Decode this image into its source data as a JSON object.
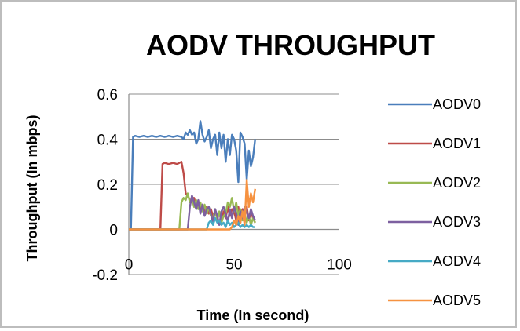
{
  "chart_data": {
    "type": "line",
    "title": "AODV THROUGHPUT",
    "xlabel": "Time (In second)",
    "ylabel": "Throughput (In mbps)",
    "xlim": [
      0,
      100
    ],
    "ylim": [
      -0.2,
      0.6
    ],
    "x_ticks": [
      0,
      50,
      100
    ],
    "y_ticks": [
      -0.2,
      0,
      0.2,
      0.4,
      0.6
    ],
    "x_tick_labels": [
      "0",
      "50",
      "100"
    ],
    "y_tick_labels": [
      "-0.2",
      "0",
      "0.2",
      "0.4",
      "0.6"
    ],
    "grid": "horizontal",
    "legend_position": "right",
    "series": [
      {
        "name": "AODV0",
        "color": "#4a7ebb",
        "points": [
          [
            0,
            0
          ],
          [
            1,
            0
          ],
          [
            2,
            0.41
          ],
          [
            3,
            0.415
          ],
          [
            5,
            0.41
          ],
          [
            7,
            0.415
          ],
          [
            9,
            0.41
          ],
          [
            11,
            0.415
          ],
          [
            13,
            0.41
          ],
          [
            15,
            0.415
          ],
          [
            17,
            0.41
          ],
          [
            19,
            0.415
          ],
          [
            21,
            0.41
          ],
          [
            23,
            0.415
          ],
          [
            25,
            0.41
          ],
          [
            26,
            0.4
          ],
          [
            27,
            0.43
          ],
          [
            28,
            0.42
          ],
          [
            29,
            0.44
          ],
          [
            30,
            0.42
          ],
          [
            31,
            0.43
          ],
          [
            32,
            0.38
          ],
          [
            33,
            0.4
          ],
          [
            34,
            0.48
          ],
          [
            35,
            0.42
          ],
          [
            36,
            0.39
          ],
          [
            37,
            0.41
          ],
          [
            38,
            0.44
          ],
          [
            39,
            0.36
          ],
          [
            40,
            0.4
          ],
          [
            41,
            0.42
          ],
          [
            42,
            0.33
          ],
          [
            43,
            0.43
          ],
          [
            44,
            0.36
          ],
          [
            45,
            0.42
          ],
          [
            46,
            0.3
          ],
          [
            47,
            0.4
          ],
          [
            48,
            0.33
          ],
          [
            49,
            0.42
          ],
          [
            50,
            0.4
          ],
          [
            51,
            0.35
          ],
          [
            52,
            0.21
          ],
          [
            53,
            0.43
          ],
          [
            54,
            0.41
          ],
          [
            55,
            0.38
          ],
          [
            56,
            0.22
          ],
          [
            57,
            0.35
          ],
          [
            58,
            0.28
          ],
          [
            59,
            0.32
          ],
          [
            60,
            0.4
          ]
        ]
      },
      {
        "name": "AODV1",
        "color": "#be4b48",
        "points": [
          [
            0,
            0
          ],
          [
            15,
            0
          ],
          [
            16,
            0.29
          ],
          [
            17,
            0.295
          ],
          [
            19,
            0.29
          ],
          [
            21,
            0.295
          ],
          [
            23,
            0.29
          ],
          [
            25,
            0.3
          ],
          [
            26,
            0.25
          ],
          [
            27,
            0.16
          ],
          [
            28,
            0.15
          ],
          [
            29,
            0.13
          ],
          [
            30,
            0.12
          ],
          [
            31,
            0.14
          ],
          [
            32,
            0.1
          ],
          [
            33,
            0.12
          ],
          [
            34,
            0.09
          ],
          [
            35,
            0.11
          ],
          [
            36,
            0.08
          ],
          [
            37,
            0.1
          ],
          [
            38,
            0.07
          ],
          [
            39,
            0.09
          ],
          [
            40,
            0.06
          ],
          [
            41,
            0.08
          ],
          [
            42,
            0.05
          ],
          [
            43,
            0.07
          ],
          [
            44,
            0.04
          ],
          [
            45,
            0.08
          ],
          [
            46,
            0.05
          ],
          [
            47,
            0.1
          ],
          [
            48,
            0.06
          ],
          [
            49,
            0.09
          ],
          [
            50,
            0.08
          ],
          [
            51,
            0.04
          ],
          [
            52,
            0.1
          ],
          [
            53,
            0.03
          ],
          [
            54,
            0.09
          ],
          [
            55,
            0.05
          ],
          [
            56,
            0.1
          ],
          [
            57,
            0.04
          ],
          [
            58,
            0.08
          ],
          [
            59,
            0.05
          ],
          [
            60,
            0.03
          ]
        ]
      },
      {
        "name": "AODV2",
        "color": "#98b954",
        "points": [
          [
            0,
            0
          ],
          [
            24,
            0
          ],
          [
            25,
            0.12
          ],
          [
            26,
            0.14
          ],
          [
            27,
            0.13
          ],
          [
            28,
            0.16
          ],
          [
            29,
            0.12
          ],
          [
            30,
            0.14
          ],
          [
            31,
            0.1
          ],
          [
            32,
            0.13
          ],
          [
            33,
            0.09
          ],
          [
            34,
            0.12
          ],
          [
            35,
            0.08
          ],
          [
            36,
            0.11
          ],
          [
            37,
            0.07
          ],
          [
            38,
            0.1
          ],
          [
            39,
            0.06
          ],
          [
            40,
            0.05
          ],
          [
            41,
            0.09
          ],
          [
            42,
            0.04
          ],
          [
            43,
            0.08
          ],
          [
            44,
            0.03
          ],
          [
            45,
            0.06
          ],
          [
            46,
            0.07
          ],
          [
            47,
            0.12
          ],
          [
            48,
            0.1
          ],
          [
            49,
            0.14
          ],
          [
            50,
            0.08
          ],
          [
            51,
            0.12
          ],
          [
            52,
            0.06
          ],
          [
            53,
            0.09
          ],
          [
            54,
            0.04
          ],
          [
            55,
            0.07
          ],
          [
            56,
            0.03
          ],
          [
            57,
            0.06
          ],
          [
            58,
            0.02
          ],
          [
            59,
            0.05
          ],
          [
            60,
            0.03
          ]
        ]
      },
      {
        "name": "AODV3",
        "color": "#7d60a0",
        "points": [
          [
            0,
            0
          ],
          [
            28,
            0
          ],
          [
            29,
            0.1
          ],
          [
            30,
            0.15
          ],
          [
            31,
            0.12
          ],
          [
            32,
            0.09
          ],
          [
            33,
            0.13
          ],
          [
            34,
            0.07
          ],
          [
            35,
            0.11
          ],
          [
            36,
            0.06
          ],
          [
            37,
            0.09
          ],
          [
            38,
            0.1
          ],
          [
            39,
            0.07
          ],
          [
            40,
            0.03
          ],
          [
            41,
            0.09
          ],
          [
            42,
            0.06
          ],
          [
            43,
            0.02
          ],
          [
            44,
            0.08
          ],
          [
            45,
            0.1
          ],
          [
            46,
            0.07
          ],
          [
            47,
            0.03
          ],
          [
            48,
            0.09
          ],
          [
            49,
            0.05
          ],
          [
            50,
            0.1
          ],
          [
            51,
            0.07
          ],
          [
            52,
            0.02
          ],
          [
            53,
            0.08
          ],
          [
            54,
            0.05
          ],
          [
            55,
            0.1
          ],
          [
            56,
            0.08
          ],
          [
            57,
            0.05
          ],
          [
            58,
            0.09
          ],
          [
            59,
            0.06
          ],
          [
            60,
            0.04
          ]
        ]
      },
      {
        "name": "AODV4",
        "color": "#46aac5",
        "points": [
          [
            0,
            0
          ],
          [
            37,
            0
          ],
          [
            38,
            0.03
          ],
          [
            39,
            0.04
          ],
          [
            40,
            0.02
          ],
          [
            41,
            0.05
          ],
          [
            42,
            0.03
          ],
          [
            43,
            0.04
          ],
          [
            44,
            0.02
          ],
          [
            45,
            0.03
          ],
          [
            46,
            0.01
          ],
          [
            47,
            0.04
          ],
          [
            48,
            0.02
          ],
          [
            49,
            0.03
          ],
          [
            50,
            0.01
          ],
          [
            51,
            0.02
          ],
          [
            52,
            0.03
          ],
          [
            53,
            0.01
          ],
          [
            54,
            0.02
          ],
          [
            55,
            0.01
          ],
          [
            56,
            0.02
          ],
          [
            57,
            0.01
          ],
          [
            58,
            0.02
          ],
          [
            59,
            0.01
          ],
          [
            60,
            0.01
          ]
        ]
      },
      {
        "name": "AODV5",
        "color": "#f69240",
        "points": [
          [
            0,
            0
          ],
          [
            48,
            0
          ],
          [
            49,
            0.01
          ],
          [
            50,
            0.04
          ],
          [
            51,
            0.02
          ],
          [
            52,
            0.06
          ],
          [
            53,
            0.03
          ],
          [
            54,
            0.08
          ],
          [
            55,
            0.02
          ],
          [
            56,
            0.22
          ],
          [
            57,
            0.1
          ],
          [
            58,
            0.16
          ],
          [
            59,
            0.12
          ],
          [
            60,
            0.18
          ]
        ]
      }
    ]
  }
}
